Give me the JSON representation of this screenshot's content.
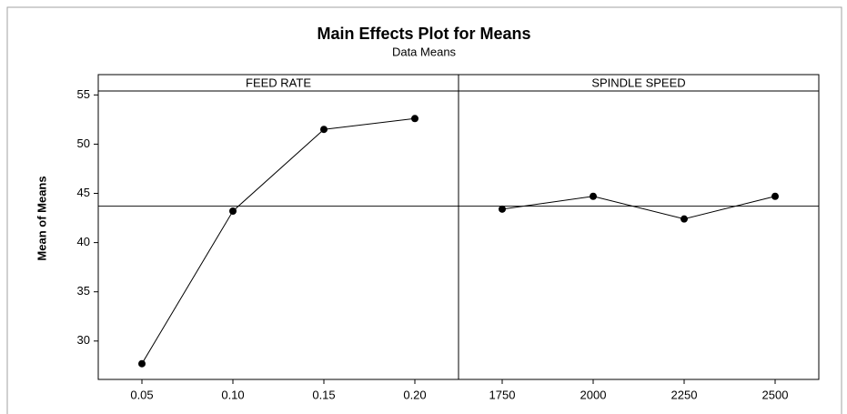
{
  "chart_data": {
    "type": "line",
    "title": "Main Effects Plot for Means",
    "subtitle": "Data Means",
    "ylabel": "Mean of Means",
    "ylim": [
      26.1,
      55.4
    ],
    "yticks": [
      30,
      35,
      40,
      45,
      50,
      55
    ],
    "reference_line": 43.7,
    "color": "#000000",
    "panels": [
      {
        "title": "FEED RATE",
        "categories": [
          "0.05",
          "0.10",
          "0.15",
          "0.20"
        ],
        "values": [
          27.7,
          43.2,
          51.5,
          52.6
        ]
      },
      {
        "title": "SPINDLE SPEED",
        "categories": [
          "1750",
          "2000",
          "2250",
          "2500"
        ],
        "values": [
          43.4,
          44.7,
          42.4,
          44.7
        ]
      }
    ]
  }
}
